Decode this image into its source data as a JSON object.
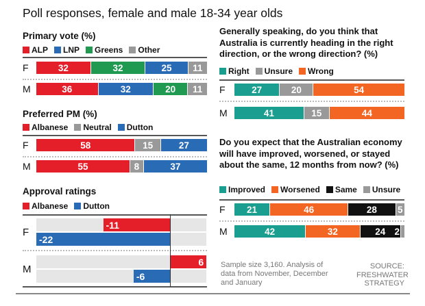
{
  "title": "Poll responses, female and male 18-34 year olds",
  "footnote": "Sample size 3,160. Analysis of data from November, December and January",
  "source": "SOURCE: FRESHWATER STRATEGY",
  "chart_data": [
    {
      "id": "primary",
      "type": "bar",
      "stacked": true,
      "title": "Primary vote (%)",
      "legend": [
        {
          "name": "ALP",
          "color": "#e41f2a"
        },
        {
          "name": "LNP",
          "color": "#2a6bb6"
        },
        {
          "name": "Greens",
          "color": "#1f9a50"
        },
        {
          "name": "Other",
          "color": "#999999"
        }
      ],
      "categories": [
        "F",
        "M"
      ],
      "rows": [
        {
          "label": "F",
          "segments": [
            {
              "series": "ALP",
              "value": 32
            },
            {
              "series": "Greens",
              "value": 32
            },
            {
              "series": "LNP",
              "value": 25
            },
            {
              "series": "Other",
              "value": 11
            }
          ]
        },
        {
          "label": "M",
          "segments": [
            {
              "series": "ALP",
              "value": 36
            },
            {
              "series": "LNP",
              "value": 32
            },
            {
              "series": "Greens",
              "value": 20
            },
            {
              "series": "Other",
              "value": 11
            }
          ]
        }
      ]
    },
    {
      "id": "pm",
      "type": "bar",
      "stacked": true,
      "title": "Preferred PM (%)",
      "legend": [
        {
          "name": "Albanese",
          "color": "#e41f2a"
        },
        {
          "name": "Neutral",
          "color": "#999999"
        },
        {
          "name": "Dutton",
          "color": "#2a6bb6"
        }
      ],
      "categories": [
        "F",
        "M"
      ],
      "rows": [
        {
          "label": "F",
          "segments": [
            {
              "series": "Albanese",
              "value": 58
            },
            {
              "series": "Neutral",
              "value": 15
            },
            {
              "series": "Dutton",
              "value": 27
            }
          ]
        },
        {
          "label": "M",
          "segments": [
            {
              "series": "Albanese",
              "value": 55
            },
            {
              "series": "Neutral",
              "value": 8
            },
            {
              "series": "Dutton",
              "value": 37
            }
          ]
        }
      ]
    },
    {
      "id": "approval",
      "type": "bar",
      "title": "Approval ratings",
      "legend": [
        {
          "name": "Albanese",
          "color": "#e41f2a"
        },
        {
          "name": "Dutton",
          "color": "#2a6bb6"
        }
      ],
      "categories": [
        "F",
        "M"
      ],
      "xlim": [
        -22,
        6
      ],
      "series": [
        {
          "name": "Albanese",
          "values": [
            -11,
            6
          ]
        },
        {
          "name": "Dutton",
          "values": [
            -22,
            -6
          ]
        }
      ]
    },
    {
      "id": "direction",
      "type": "bar",
      "stacked": true,
      "title": "Generally speaking, do you think that Australia is currently heading in the right direction, or the wrong direction? (%)",
      "legend": [
        {
          "name": "Right",
          "color": "#1a9e8f"
        },
        {
          "name": "Unsure",
          "color": "#999999"
        },
        {
          "name": "Wrong",
          "color": "#f26522"
        }
      ],
      "categories": [
        "F",
        "M"
      ],
      "rows": [
        {
          "label": "F",
          "segments": [
            {
              "series": "Right",
              "value": 27
            },
            {
              "series": "Unsure",
              "value": 20
            },
            {
              "series": "Wrong",
              "value": 54
            }
          ]
        },
        {
          "label": "M",
          "segments": [
            {
              "series": "Right",
              "value": 41
            },
            {
              "series": "Unsure",
              "value": 15
            },
            {
              "series": "Wrong",
              "value": 44
            }
          ]
        }
      ]
    },
    {
      "id": "economy",
      "type": "bar",
      "stacked": true,
      "title": "Do you expect that the Australian economy will have improved, worsened, or stayed about the same, 12 months from now? (%)",
      "legend": [
        {
          "name": "Improved",
          "color": "#1a9e8f"
        },
        {
          "name": "Worsened",
          "color": "#f26522"
        },
        {
          "name": "Same",
          "color": "#111111"
        },
        {
          "name": "Unsure",
          "color": "#999999"
        }
      ],
      "categories": [
        "F",
        "M"
      ],
      "rows": [
        {
          "label": "F",
          "segments": [
            {
              "series": "Improved",
              "value": 21
            },
            {
              "series": "Worsened",
              "value": 46
            },
            {
              "series": "Same",
              "value": 28
            },
            {
              "series": "Unsure",
              "value": 5
            }
          ]
        },
        {
          "label": "M",
          "segments": [
            {
              "series": "Improved",
              "value": 42
            },
            {
              "series": "Worsened",
              "value": 32
            },
            {
              "series": "Same",
              "value": 24
            },
            {
              "series": "Unsure",
              "value": 2
            }
          ]
        }
      ]
    }
  ]
}
